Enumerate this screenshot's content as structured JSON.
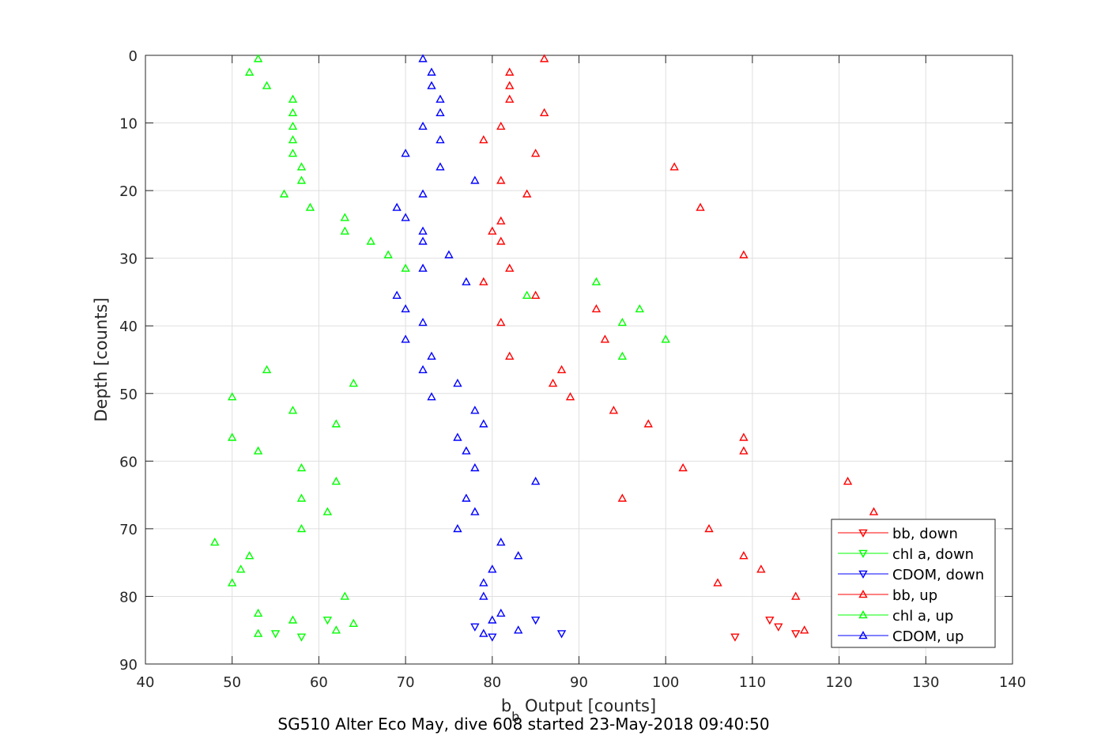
{
  "caption": "SG510 Alter Eco May, dive 608 started 23-May-2018 09:40:50",
  "chart_data": {
    "type": "scatter",
    "xlabel_main": "b",
    "xlabel_sub": "b",
    "xlabel_rest": " Output [counts]",
    "ylabel": "Depth [counts]",
    "xlim": [
      40,
      140
    ],
    "ylim": [
      0,
      90
    ],
    "y_reversed": true,
    "grid": true,
    "xticks": [
      40,
      50,
      60,
      70,
      80,
      90,
      100,
      110,
      120,
      130,
      140
    ],
    "yticks": [
      0,
      10,
      20,
      30,
      40,
      50,
      60,
      70,
      80,
      90
    ],
    "legend_position": "bottom-right",
    "series": [
      {
        "name": "bb, down",
        "color": "#ff0000",
        "marker": "triangle-down",
        "points": [
          [
            112,
            83.5
          ],
          [
            113,
            84.5
          ],
          [
            115,
            85.5
          ],
          [
            108,
            86
          ]
        ]
      },
      {
        "name": "chl a, down",
        "color": "#00ff00",
        "marker": "triangle-down",
        "points": [
          [
            61,
            83.5
          ],
          [
            55,
            85.5
          ],
          [
            58,
            86
          ]
        ]
      },
      {
        "name": "CDOM, down",
        "color": "#0000ff",
        "marker": "triangle-down",
        "points": [
          [
            78,
            84.5
          ],
          [
            85,
            83.5
          ],
          [
            88,
            85.5
          ],
          [
            80,
            86
          ]
        ]
      },
      {
        "name": "bb, up",
        "color": "#ff0000",
        "marker": "triangle-up",
        "points": [
          [
            86,
            0.5
          ],
          [
            82,
            2.5
          ],
          [
            82,
            4.5
          ],
          [
            82,
            6.5
          ],
          [
            86,
            8.5
          ],
          [
            81,
            10.5
          ],
          [
            79,
            12.5
          ],
          [
            85,
            14.5
          ],
          [
            101,
            16.5
          ],
          [
            81,
            18.5
          ],
          [
            84,
            20.5
          ],
          [
            104,
            22.5
          ],
          [
            81,
            24.5
          ],
          [
            80,
            26
          ],
          [
            81,
            27.5
          ],
          [
            109,
            29.5
          ],
          [
            82,
            31.5
          ],
          [
            79,
            33.5
          ],
          [
            85,
            35.5
          ],
          [
            92,
            37.5
          ],
          [
            81,
            39.5
          ],
          [
            93,
            42
          ],
          [
            82,
            44.5
          ],
          [
            88,
            46.5
          ],
          [
            87,
            48.5
          ],
          [
            89,
            50.5
          ],
          [
            94,
            52.5
          ],
          [
            98,
            54.5
          ],
          [
            109,
            56.5
          ],
          [
            109,
            58.5
          ],
          [
            102,
            61
          ],
          [
            121,
            63
          ],
          [
            95,
            65.5
          ],
          [
            124,
            67.5
          ],
          [
            105,
            70
          ],
          [
            109,
            74
          ],
          [
            111,
            76
          ],
          [
            106,
            78
          ],
          [
            115,
            80
          ],
          [
            116,
            85
          ]
        ]
      },
      {
        "name": "chl a, up",
        "color": "#00ff00",
        "marker": "triangle-up",
        "points": [
          [
            53,
            0.5
          ],
          [
            52,
            2.5
          ],
          [
            54,
            4.5
          ],
          [
            57,
            6.5
          ],
          [
            57,
            8.5
          ],
          [
            57,
            10.5
          ],
          [
            57,
            12.5
          ],
          [
            57,
            14.5
          ],
          [
            58,
            16.5
          ],
          [
            58,
            18.5
          ],
          [
            56,
            20.5
          ],
          [
            59,
            22.5
          ],
          [
            63,
            24
          ],
          [
            63,
            26
          ],
          [
            66,
            27.5
          ],
          [
            68,
            29.5
          ],
          [
            70,
            31.5
          ],
          [
            92,
            33.5
          ],
          [
            84,
            35.5
          ],
          [
            97,
            37.5
          ],
          [
            95,
            39.5
          ],
          [
            100,
            42
          ],
          [
            95,
            44.5
          ],
          [
            54,
            46.5
          ],
          [
            64,
            48.5
          ],
          [
            50,
            50.5
          ],
          [
            57,
            52.5
          ],
          [
            62,
            54.5
          ],
          [
            50,
            56.5
          ],
          [
            53,
            58.5
          ],
          [
            58,
            61
          ],
          [
            62,
            63
          ],
          [
            58,
            65.5
          ],
          [
            61,
            67.5
          ],
          [
            58,
            70
          ],
          [
            48,
            72
          ],
          [
            52,
            74
          ],
          [
            51,
            76
          ],
          [
            50,
            78
          ],
          [
            63,
            80
          ],
          [
            53,
            82.5
          ],
          [
            57,
            83.5
          ],
          [
            64,
            84
          ],
          [
            62,
            85
          ],
          [
            53,
            85.5
          ]
        ]
      },
      {
        "name": "CDOM, up",
        "color": "#0000ff",
        "marker": "triangle-up",
        "points": [
          [
            72,
            0.5
          ],
          [
            73,
            2.5
          ],
          [
            73,
            4.5
          ],
          [
            74,
            6.5
          ],
          [
            74,
            8.5
          ],
          [
            72,
            10.5
          ],
          [
            74,
            12.5
          ],
          [
            70,
            14.5
          ],
          [
            74,
            16.5
          ],
          [
            78,
            18.5
          ],
          [
            72,
            20.5
          ],
          [
            69,
            22.5
          ],
          [
            70,
            24
          ],
          [
            72,
            26
          ],
          [
            72,
            27.5
          ],
          [
            75,
            29.5
          ],
          [
            72,
            31.5
          ],
          [
            77,
            33.5
          ],
          [
            69,
            35.5
          ],
          [
            70,
            37.5
          ],
          [
            72,
            39.5
          ],
          [
            70,
            42
          ],
          [
            73,
            44.5
          ],
          [
            72,
            46.5
          ],
          [
            76,
            48.5
          ],
          [
            73,
            50.5
          ],
          [
            78,
            52.5
          ],
          [
            79,
            54.5
          ],
          [
            76,
            56.5
          ],
          [
            77,
            58.5
          ],
          [
            78,
            61
          ],
          [
            85,
            63
          ],
          [
            77,
            65.5
          ],
          [
            78,
            67.5
          ],
          [
            76,
            70
          ],
          [
            81,
            72
          ],
          [
            83,
            74
          ],
          [
            80,
            76
          ],
          [
            79,
            78
          ],
          [
            79,
            80
          ],
          [
            81,
            82.5
          ],
          [
            80,
            83.5
          ],
          [
            83,
            85
          ],
          [
            79,
            85.5
          ]
        ]
      }
    ]
  }
}
